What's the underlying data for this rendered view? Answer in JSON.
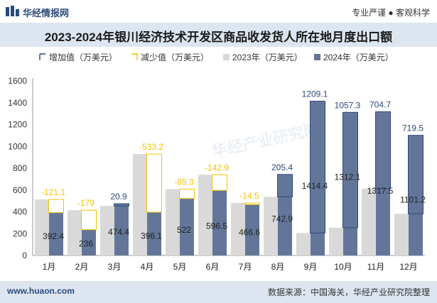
{
  "header": {
    "brand": "华经情报网",
    "slogan": "专业严谨 ● 客观科学"
  },
  "footer": {
    "site": "www.huaon.com",
    "source": "数据来源：中国海关，华经产业研究院整理"
  },
  "watermark": "华经产业研究院",
  "colors": {
    "increase": "#2c4a7a",
    "decrease": "#f2c200",
    "y2023": "#d9d9d9",
    "y2024": "#637699",
    "band": "#dde6f0"
  },
  "chart_data": {
    "type": "bar",
    "title": "2023-2024年银川经济技术开发区商品收发货人所在地月度出口额",
    "categories": [
      "1月",
      "2月",
      "3月",
      "4月",
      "5月",
      "6月",
      "7月",
      "8月",
      "9月",
      "10月",
      "11月",
      "12月"
    ],
    "series": [
      {
        "name": "2023年（万美元）",
        "values": [
          513.5,
          415,
          453.5,
          929.3,
          607.3,
          739.4,
          481.1,
          537.5,
          205.3,
          254.8,
          612.8,
          381.7
        ]
      },
      {
        "name": "2024年（万美元）",
        "values": [
          392.4,
          236,
          474.4,
          396.1,
          522,
          596.5,
          466.6,
          742.9,
          1414.4,
          1312.1,
          1317.5,
          1101.2
        ]
      }
    ],
    "change": {
      "increase_name": "增加值（万美元）",
      "decrease_name": "减少值（万美元）",
      "values": [
        -121.1,
        -179,
        20.9,
        -533.2,
        -85.3,
        -142.9,
        -14.5,
        205.4,
        1209.1,
        1057.3,
        704.7,
        719.5
      ],
      "labels": [
        "-121.1",
        "-179",
        "20.9",
        "-533.2",
        "-85.3",
        "-142.9",
        "-14.5",
        "205.4",
        "1209.1",
        "1057.3",
        "704.7",
        "719.5"
      ]
    },
    "value_labels": [
      "392.4",
      "236",
      "474.4",
      "396.1",
      "522",
      "596.5",
      "466.6",
      "742.9",
      "1414.4",
      "1312.1",
      "1317.5",
      "1101.2"
    ],
    "y_ticks": [
      0,
      200,
      400,
      600,
      800,
      1000,
      1200,
      1400,
      1600
    ],
    "ylim": [
      0,
      1600
    ],
    "legend_position": "top-left"
  }
}
